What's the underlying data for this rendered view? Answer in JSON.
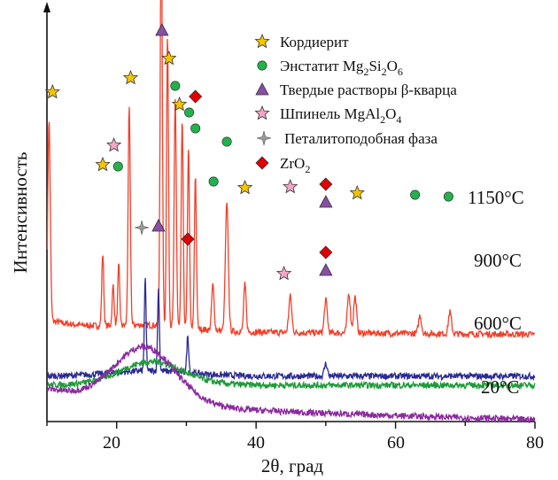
{
  "chart_data": {
    "type": "line",
    "title": "",
    "xlabel": "2θ, град",
    "ylabel": "Интенсивность",
    "xlim": [
      10,
      80
    ],
    "xticks": [
      20,
      40,
      60,
      80
    ],
    "grid": false,
    "legend_position": "top-right",
    "legend": [
      {
        "name": "Кордиерит",
        "marker": "star",
        "color": "#f5c400"
      },
      {
        "name": "Энстатит Mg2Si2O6",
        "marker": "circle",
        "color": "#22b14c"
      },
      {
        "name": "Твердые растворы β-кварца",
        "marker": "triangle",
        "color": "#8b4ea6"
      },
      {
        "name": "Шпинель MgAl2O4",
        "marker": "star",
        "color": "#f4a6c6"
      },
      {
        "name": "Петалитоподобная фаза",
        "marker": "sparkle",
        "color": "#9a9a9a"
      },
      {
        "name": "ZrO2",
        "marker": "diamond",
        "color": "#e00000"
      }
    ],
    "series": [
      {
        "name": "1150°C",
        "color": "#f2402a",
        "baseline": 0.5,
        "peaks": [
          {
            "x": 10.3,
            "h": 1.1,
            "w": 0.25
          },
          {
            "x": 18.0,
            "h": 0.4,
            "w": 0.2
          },
          {
            "x": 19.5,
            "h": 0.22,
            "w": 0.2
          },
          {
            "x": 20.3,
            "h": 0.33,
            "w": 0.2
          },
          {
            "x": 21.8,
            "h": 1.2,
            "w": 0.22
          },
          {
            "x": 26.4,
            "h": 2.2,
            "w": 0.22
          },
          {
            "x": 27.3,
            "h": 1.6,
            "w": 0.2
          },
          {
            "x": 28.4,
            "h": 1.25,
            "w": 0.22
          },
          {
            "x": 29.4,
            "h": 1.15,
            "w": 0.2
          },
          {
            "x": 30.3,
            "h": 1.0,
            "w": 0.2
          },
          {
            "x": 31.3,
            "h": 0.85,
            "w": 0.2
          },
          {
            "x": 33.8,
            "h": 0.25,
            "w": 0.25
          },
          {
            "x": 35.8,
            "h": 0.7,
            "w": 0.3
          },
          {
            "x": 38.4,
            "h": 0.26,
            "w": 0.25
          },
          {
            "x": 44.9,
            "h": 0.2,
            "w": 0.3
          },
          {
            "x": 50.0,
            "h": 0.18,
            "w": 0.3
          },
          {
            "x": 53.3,
            "h": 0.22,
            "w": 0.3
          },
          {
            "x": 54.2,
            "h": 0.2,
            "w": 0.3
          },
          {
            "x": 63.5,
            "h": 0.1,
            "w": 0.3
          },
          {
            "x": 67.8,
            "h": 0.12,
            "w": 0.3
          }
        ]
      },
      {
        "name": "900°C",
        "color": "#2b2a93",
        "baseline": 0.25,
        "peaks": [
          {
            "x": 24.1,
            "h": 0.5,
            "w": 0.18
          },
          {
            "x": 26.0,
            "h": 0.45,
            "w": 0.18
          },
          {
            "x": 30.2,
            "h": 0.2,
            "w": 0.2
          },
          {
            "x": 50.0,
            "h": 0.07,
            "w": 0.3
          }
        ]
      },
      {
        "name": "600°C",
        "color": "#1f9a3a",
        "baseline": 0.2,
        "hump": {
          "x": 25,
          "h": 0.1,
          "w": 6
        }
      },
      {
        "name": "20°C",
        "color": "#8b2a9e",
        "baseline": 0.08,
        "hump": {
          "x": 24,
          "h": 0.28,
          "w": 6
        }
      }
    ],
    "markers": [
      {
        "phase": "cordierite",
        "x": 10.8,
        "level": "1150"
      },
      {
        "phase": "cordierite",
        "x": 18.0,
        "level": "1150"
      },
      {
        "phase": "enstatite",
        "x": 20.2,
        "level": "1150"
      },
      {
        "phase": "spinel",
        "x": 19.6,
        "level": "1150"
      },
      {
        "phase": "cordierite",
        "x": 22.0,
        "level": "1150"
      },
      {
        "phase": "quartz_ss",
        "x": 26.5,
        "level": "1150"
      },
      {
        "phase": "cordierite",
        "x": 27.5,
        "level": "1150"
      },
      {
        "phase": "enstatite",
        "x": 28.4,
        "level": "1150"
      },
      {
        "phase": "cordierite",
        "x": 29.0,
        "level": "1150"
      },
      {
        "phase": "enstatite",
        "x": 30.4,
        "level": "1150"
      },
      {
        "phase": "zro2",
        "x": 31.3,
        "level": "1150"
      },
      {
        "phase": "enstatite",
        "x": 31.3,
        "level": "1150"
      },
      {
        "phase": "enstatite",
        "x": 35.8,
        "level": "1150"
      },
      {
        "phase": "enstatite",
        "x": 33.9,
        "level": "1150"
      },
      {
        "phase": "cordierite",
        "x": 38.4,
        "level": "1150"
      },
      {
        "phase": "spinel",
        "x": 44.9,
        "level": "1150"
      },
      {
        "phase": "zro2",
        "x": 50.0,
        "level": "1150"
      },
      {
        "phase": "quartz_ss",
        "x": 50.0,
        "level": "1150"
      },
      {
        "phase": "cordierite",
        "x": 54.5,
        "level": "1150"
      },
      {
        "phase": "enstatite",
        "x": 62.8,
        "level": "1150"
      },
      {
        "phase": "enstatite",
        "x": 67.6,
        "level": "1150"
      },
      {
        "phase": "petalite",
        "x": 23.6,
        "level": "900"
      },
      {
        "phase": "quartz_ss",
        "x": 26.0,
        "level": "900"
      },
      {
        "phase": "zro2",
        "x": 30.2,
        "level": "900"
      },
      {
        "phase": "spinel",
        "x": 44.0,
        "level": "900"
      },
      {
        "phase": "zro2",
        "x": 50.0,
        "level": "900"
      },
      {
        "phase": "quartz_ss",
        "x": 50.0,
        "level": "900"
      }
    ]
  },
  "labels": {
    "xlabel": "2θ, град",
    "ylabel": "Интенсивность",
    "t1150": "1150°C",
    "t900": "900°C",
    "t600": "600°C",
    "t20": "20°C",
    "x20": "20",
    "x40": "40",
    "x60": "60",
    "x80": "80"
  },
  "legend_text": {
    "cordierite": "Кордиерит",
    "enstatite_base": "Энстатит Mg",
    "enstatite_sub1": "2",
    "enstatite_mid": "Si",
    "enstatite_sub2": "2",
    "enstatite_end": "O",
    "enstatite_sub3": "6",
    "quartz": "Твердые растворы β-кварца",
    "spinel_base": "Шпинель MgAl",
    "spinel_sub1": "2",
    "spinel_mid": "O",
    "spinel_sub2": "4",
    "petalite": "Петалитоподобная фаза",
    "zro2_base": "ZrO",
    "zro2_sub": "2"
  }
}
